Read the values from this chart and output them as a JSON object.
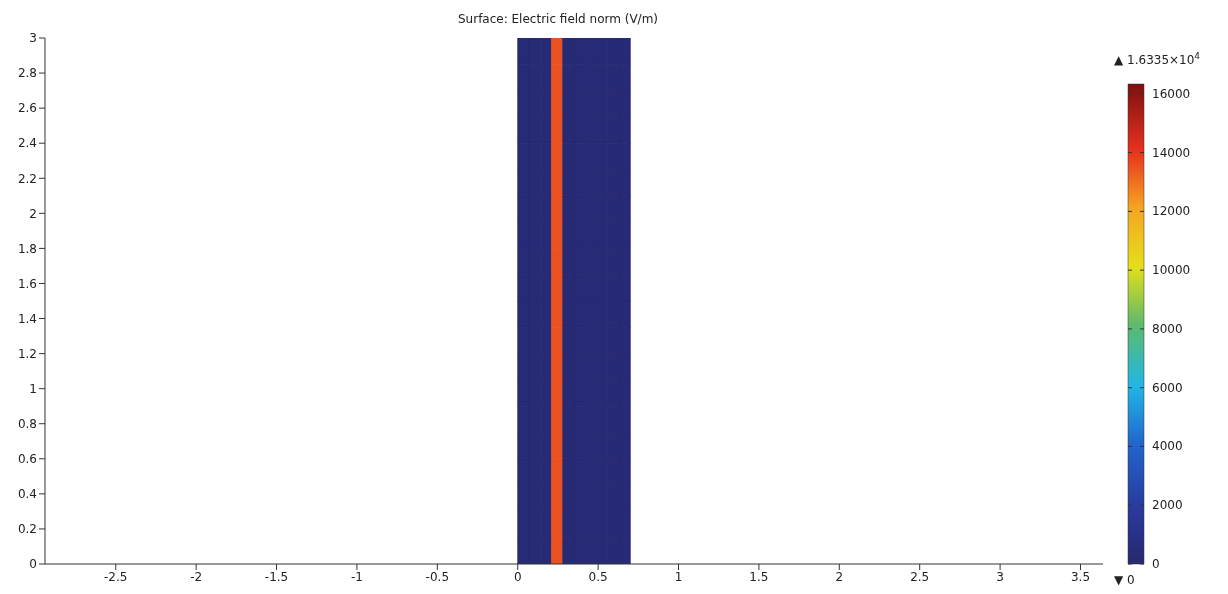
{
  "chart_data": {
    "type": "heatmap",
    "title": "Surface: Electric field norm (V/m)",
    "cells": [
      [
        null,
        null,
        null,
        null,
        null,
        null,
        null,
        null,
        null,
        null,
        null,
        null,
        null,
        null,
        null,
        null,
        null,
        null,
        null,
        null,
        null,
        null,
        null,
        null,
        null,
        null,
        null,
        null,
        null,
        null,
        null,
        null,
        null,
        null,
        null,
        null,
        null,
        null,
        null,
        null,
        null,
        null,
        200,
        200,
        200,
        13500,
        200,
        200,
        200,
        200,
        200,
        200,
        null,
        null,
        null,
        null,
        null,
        null,
        null,
        null,
        null,
        null,
        null,
        null,
        null,
        null,
        null,
        null,
        null,
        null,
        null,
        null,
        null,
        null,
        null,
        null,
        null,
        null,
        null,
        null,
        null,
        null,
        null,
        null,
        null,
        null,
        null,
        null,
        null,
        null,
        null,
        null,
        null,
        null
      ],
      [
        null,
        null,
        null,
        null,
        null,
        null,
        null,
        null,
        null,
        null,
        null,
        null,
        null,
        null,
        null,
        null,
        null,
        null,
        null,
        null,
        null,
        null,
        null,
        null,
        null,
        null,
        null,
        null,
        null,
        null,
        null,
        null,
        null,
        null,
        null,
        null,
        null,
        null,
        null,
        null,
        null,
        null,
        200,
        200,
        200,
        13500,
        200,
        200,
        200,
        200,
        200,
        200,
        null,
        null,
        null,
        null,
        null,
        null,
        null,
        null,
        null,
        null,
        null,
        null,
        null,
        null,
        null,
        null,
        null,
        null,
        null,
        null,
        null,
        null,
        null,
        null,
        null,
        null,
        null,
        null,
        null,
        null,
        null,
        null,
        null,
        null,
        null,
        null,
        null,
        null,
        null,
        null,
        null,
        null
      ],
      [
        null,
        null,
        null,
        null,
        null,
        null,
        null,
        null,
        null,
        null,
        null,
        null,
        null,
        null,
        null,
        null,
        null,
        null,
        null,
        null,
        null,
        null,
        null,
        null,
        null,
        null,
        null,
        null,
        null,
        null,
        null,
        null,
        null,
        null,
        null,
        null,
        null,
        null,
        null,
        null,
        null,
        null,
        200,
        200,
        200,
        13500,
        200,
        200,
        200,
        200,
        200,
        200,
        null,
        null,
        null,
        null,
        null,
        null,
        null,
        null,
        null,
        null,
        null,
        null,
        null,
        null,
        null,
        null,
        null,
        null,
        null,
        null,
        null,
        null,
        null,
        null,
        null,
        null,
        null,
        null,
        null,
        null,
        null,
        null,
        null,
        null,
        null,
        null,
        null,
        null,
        null,
        null,
        null,
        null
      ],
      [
        null,
        null,
        null,
        null,
        null,
        null,
        null,
        null,
        null,
        null,
        null,
        null,
        null,
        null,
        null,
        null,
        null,
        null,
        null,
        null,
        null,
        null,
        null,
        null,
        null,
        null,
        null,
        null,
        null,
        null,
        null,
        null,
        null,
        null,
        null,
        null,
        null,
        null,
        null,
        null,
        null,
        null,
        200,
        200,
        200,
        13500,
        200,
        200,
        200,
        200,
        200,
        200,
        null,
        null,
        null,
        null,
        null,
        null,
        null,
        null,
        null,
        null,
        null,
        null,
        null,
        null,
        null,
        null,
        null,
        null,
        null,
        null,
        null,
        null,
        null,
        null,
        null,
        null,
        null,
        null,
        null,
        null,
        null,
        null,
        null,
        null,
        null,
        null,
        null,
        null,
        null,
        null,
        null,
        null
      ],
      [
        null,
        null,
        null,
        null,
        null,
        null,
        null,
        null,
        null,
        null,
        null,
        null,
        null,
        null,
        null,
        null,
        null,
        null,
        null,
        null,
        null,
        null,
        null,
        null,
        null,
        null,
        null,
        null,
        null,
        null,
        null,
        null,
        null,
        null,
        null,
        null,
        null,
        null,
        null,
        null,
        null,
        null,
        200,
        200,
        200,
        13500,
        200,
        200,
        200,
        200,
        200,
        200,
        null,
        null,
        null,
        null,
        null,
        null,
        null,
        null,
        null,
        null,
        null,
        null,
        null,
        null,
        null,
        null,
        null,
        null,
        null,
        null,
        null,
        null,
        null,
        null,
        null,
        null,
        null,
        null,
        null,
        null,
        null,
        null,
        null,
        null,
        null,
        null,
        null,
        null,
        null,
        null,
        null,
        null
      ],
      [
        null,
        null,
        null,
        null,
        null,
        null,
        null,
        null,
        null,
        null,
        null,
        null,
        null,
        null,
        null,
        null,
        null,
        null,
        null,
        null,
        null,
        null,
        null,
        null,
        null,
        null,
        null,
        null,
        null,
        null,
        null,
        null,
        null,
        null,
        null,
        null,
        null,
        null,
        null,
        null,
        null,
        null,
        200,
        200,
        200,
        13500,
        200,
        200,
        200,
        200,
        200,
        200,
        null,
        null,
        null,
        null,
        null,
        null,
        null,
        null,
        null,
        null,
        null,
        null,
        null,
        null,
        null,
        null,
        null,
        null,
        null,
        null,
        null,
        null,
        null,
        null,
        null,
        null,
        null,
        null,
        null,
        null,
        null,
        null,
        null,
        null,
        null,
        null,
        null,
        null,
        null,
        null,
        null,
        null
      ],
      [
        null,
        null,
        null,
        null,
        null,
        null,
        null,
        null,
        null,
        null,
        null,
        null,
        null,
        null,
        null,
        null,
        null,
        null,
        null,
        null,
        null,
        null,
        null,
        null,
        null,
        null,
        null,
        null,
        null,
        null,
        null,
        null,
        null,
        null,
        null,
        null,
        null,
        null,
        null,
        null,
        null,
        null,
        200,
        200,
        200,
        13500,
        200,
        200,
        200,
        200,
        200,
        200,
        null,
        null,
        null,
        null,
        null,
        null,
        null,
        null,
        null,
        null,
        null,
        null,
        null,
        null,
        null,
        null,
        null,
        null,
        null,
        null,
        null,
        null,
        null,
        null,
        null,
        null,
        null,
        null,
        null,
        null,
        null,
        null,
        null,
        null,
        null,
        null,
        null,
        null,
        null,
        null,
        null,
        null
      ],
      [
        null,
        null,
        null,
        null,
        null,
        null,
        null,
        null,
        null,
        null,
        null,
        null,
        null,
        null,
        null,
        null,
        null,
        null,
        null,
        null,
        null,
        null,
        null,
        null,
        null,
        null,
        null,
        null,
        null,
        null,
        null,
        null,
        null,
        null,
        null,
        null,
        null,
        null,
        null,
        null,
        null,
        null,
        200,
        200,
        200,
        13500,
        200,
        200,
        200,
        200,
        200,
        200,
        null,
        null,
        null,
        null,
        null,
        null,
        null,
        null,
        null,
        null,
        null,
        null,
        null,
        null,
        null,
        null,
        null,
        null,
        null,
        null,
        null,
        null,
        null,
        null,
        null,
        null,
        null,
        null,
        null,
        null,
        null,
        null,
        null,
        null,
        null,
        null,
        null,
        null,
        null,
        null,
        null,
        null
      ],
      [
        null,
        null,
        null,
        null,
        null,
        null,
        null,
        null,
        null,
        null,
        null,
        null,
        null,
        null,
        null,
        null,
        null,
        null,
        null,
        null,
        null,
        null,
        null,
        null,
        null,
        null,
        null,
        null,
        null,
        null,
        null,
        null,
        null,
        null,
        null,
        null,
        null,
        null,
        null,
        null,
        null,
        null,
        200,
        200,
        200,
        13500,
        200,
        200,
        200,
        200,
        200,
        200,
        null,
        null,
        null,
        null,
        null,
        null,
        null,
        null,
        null,
        null,
        null,
        null,
        null,
        null,
        null,
        null,
        null,
        null,
        null,
        null,
        null,
        null,
        null,
        null,
        null,
        null,
        null,
        null,
        null,
        null,
        null,
        null,
        null,
        null,
        null,
        null,
        null,
        null,
        null,
        null,
        null,
        null
      ],
      [
        null,
        null,
        null,
        null,
        null,
        null,
        null,
        null,
        null,
        null,
        null,
        null,
        null,
        null,
        null,
        null,
        null,
        null,
        null,
        null,
        null,
        null,
        null,
        null,
        null,
        null,
        null,
        null,
        null,
        null,
        null,
        null,
        null,
        null,
        null,
        null,
        null,
        null,
        null,
        null,
        null,
        null,
        200,
        200,
        200,
        13500,
        200,
        200,
        200,
        200,
        200,
        200,
        null,
        null,
        null,
        null,
        null,
        null,
        null,
        null,
        null,
        null,
        null,
        null,
        null,
        null,
        null,
        null,
        null,
        null,
        null,
        null,
        null,
        null,
        null,
        null,
        null,
        null,
        null,
        null,
        null,
        null,
        null,
        null,
        null,
        null,
        null,
        null,
        null,
        null,
        null,
        null,
        null,
        null
      ],
      [
        null,
        null,
        null,
        null,
        null,
        null,
        null,
        null,
        null,
        null,
        null,
        null,
        null,
        null,
        null,
        null,
        null,
        null,
        null,
        null,
        null,
        null,
        null,
        null,
        null,
        null,
        null,
        null,
        null,
        null,
        null,
        null,
        null,
        null,
        null,
        null,
        null,
        null,
        null,
        null,
        null,
        null,
        200,
        200,
        200,
        13500,
        200,
        200,
        200,
        200,
        200,
        200,
        null,
        null,
        null,
        null,
        null,
        null,
        null,
        null,
        null,
        null,
        null,
        null,
        null,
        null,
        null,
        null,
        null,
        null,
        null,
        null,
        null,
        null,
        null,
        null,
        null,
        null,
        null,
        null,
        null,
        null,
        null,
        null,
        null,
        null,
        null,
        null,
        null,
        null,
        null,
        null,
        null,
        null
      ],
      [
        null,
        null,
        null,
        null,
        null,
        null,
        null,
        null,
        null,
        null,
        null,
        null,
        null,
        null,
        null,
        null,
        null,
        null,
        null,
        null,
        null,
        null,
        null,
        null,
        null,
        null,
        null,
        null,
        null,
        null,
        null,
        null,
        null,
        null,
        null,
        null,
        null,
        null,
        null,
        null,
        null,
        null,
        200,
        200,
        200,
        13500,
        200,
        200,
        200,
        200,
        200,
        200,
        null,
        null,
        null,
        null,
        null,
        null,
        null,
        null,
        null,
        null,
        null,
        null,
        null,
        null,
        null,
        null,
        null,
        null,
        null,
        null,
        null,
        null,
        null,
        null,
        null,
        null,
        null,
        null,
        null,
        null,
        null,
        null,
        null,
        null,
        null,
        null,
        null,
        null,
        null,
        null,
        null,
        null
      ],
      [
        null,
        null,
        null,
        null,
        null,
        null,
        null,
        null,
        null,
        null,
        null,
        null,
        null,
        null,
        null,
        null,
        null,
        null,
        null,
        null,
        null,
        null,
        null,
        null,
        null,
        null,
        null,
        null,
        null,
        null,
        null,
        null,
        null,
        null,
        null,
        null,
        null,
        null,
        null,
        null,
        null,
        null,
        200,
        200,
        200,
        13500,
        200,
        200,
        200,
        200,
        200,
        200,
        null,
        null,
        null,
        null,
        null,
        null,
        null,
        null,
        null,
        null,
        null,
        null,
        null,
        null,
        null,
        null,
        null,
        null,
        null,
        null,
        null,
        null,
        null,
        null,
        null,
        null,
        null,
        null,
        null,
        null,
        null,
        null,
        null,
        null,
        null,
        null,
        null,
        null,
        null,
        null,
        null,
        null
      ],
      [
        null,
        null,
        null,
        null,
        null,
        null,
        null,
        null,
        null,
        null,
        null,
        null,
        null,
        null,
        null,
        null,
        null,
        null,
        null,
        null,
        null,
        null,
        null,
        null,
        null,
        null,
        null,
        null,
        null,
        null,
        null,
        null,
        null,
        null,
        null,
        null,
        null,
        null,
        null,
        null,
        null,
        null,
        200,
        200,
        200,
        13500,
        200,
        200,
        200,
        200,
        200,
        200,
        null,
        null,
        null,
        null,
        null,
        null,
        null,
        null,
        null,
        null,
        null,
        null,
        null,
        null,
        null,
        null,
        null,
        null,
        null,
        null,
        null,
        null,
        null,
        null,
        null,
        null,
        null,
        null,
        null,
        null,
        null,
        null,
        null,
        null,
        null,
        null,
        null,
        null,
        null,
        null,
        null,
        null
      ],
      [
        null,
        null,
        null,
        null,
        null,
        null,
        null,
        null,
        null,
        null,
        null,
        null,
        null,
        null,
        null,
        null,
        null,
        null,
        null,
        null,
        null,
        null,
        null,
        null,
        null,
        null,
        null,
        null,
        null,
        null,
        null,
        null,
        null,
        null,
        null,
        null,
        null,
        null,
        null,
        null,
        null,
        null,
        200,
        200,
        200,
        13500,
        200,
        200,
        200,
        200,
        200,
        200,
        null,
        null,
        null,
        null,
        null,
        null,
        null,
        null,
        null,
        null,
        null,
        null,
        null,
        null,
        null,
        null,
        null,
        null,
        null,
        null,
        null,
        null,
        null,
        null,
        null,
        null,
        null,
        null,
        null,
        null,
        null,
        null,
        null,
        null,
        null,
        null,
        null,
        null,
        null,
        null,
        null,
        null
      ],
      [
        null,
        null,
        null,
        null,
        null,
        null,
        null,
        null,
        null,
        null,
        null,
        null,
        null,
        null,
        null,
        null,
        null,
        null,
        null,
        null,
        null,
        null,
        null,
        null,
        null,
        null,
        null,
        null,
        null,
        null,
        null,
        null,
        null,
        null,
        null,
        null,
        null,
        null,
        null,
        null,
        null,
        null,
        200,
        200,
        200,
        13500,
        200,
        200,
        200,
        200,
        200,
        200,
        null,
        null,
        null,
        null,
        null,
        null,
        null,
        null,
        null,
        null,
        null,
        null,
        null,
        null,
        null,
        null,
        null,
        null,
        null,
        null,
        null,
        null,
        null,
        null,
        null,
        null,
        null,
        null,
        null,
        null,
        null,
        null,
        null,
        null,
        null,
        null,
        null,
        null,
        null,
        null,
        null,
        null
      ],
      [
        null,
        null,
        null,
        null,
        null,
        null,
        null,
        null,
        null,
        null,
        null,
        null,
        null,
        null,
        null,
        null,
        null,
        null,
        null,
        null,
        null,
        null,
        null,
        null,
        null,
        null,
        null,
        null,
        null,
        null,
        null,
        null,
        null,
        null,
        null,
        null,
        null,
        null,
        null,
        null,
        null,
        null,
        200,
        200,
        200,
        13500,
        200,
        200,
        200,
        200,
        200,
        200,
        null,
        null,
        null,
        null,
        null,
        null,
        null,
        null,
        null,
        null,
        null,
        null,
        null,
        null,
        null,
        null,
        null,
        null,
        null,
        null,
        null,
        null,
        null,
        null,
        null,
        null,
        null,
        null,
        null,
        null,
        null,
        null,
        null,
        null,
        null,
        null,
        null,
        null,
        null,
        null,
        null,
        null
      ],
      [
        null,
        null,
        null,
        null,
        null,
        null,
        null,
        null,
        null,
        null,
        null,
        null,
        null,
        null,
        null,
        null,
        null,
        null,
        null,
        null,
        null,
        null,
        null,
        null,
        null,
        null,
        null,
        null,
        null,
        null,
        null,
        null,
        null,
        null,
        null,
        null,
        null,
        null,
        null,
        null,
        null,
        null,
        200,
        200,
        200,
        13500,
        200,
        200,
        200,
        200,
        200,
        200,
        null,
        null,
        null,
        null,
        null,
        null,
        null,
        null,
        null,
        null,
        null,
        null,
        null,
        null,
        null,
        null,
        null,
        null,
        null,
        null,
        null,
        null,
        null,
        null,
        null,
        null,
        null,
        null,
        null,
        null,
        null,
        null,
        null,
        null,
        null,
        null,
        null,
        null,
        null,
        null,
        null,
        null
      ],
      [
        null,
        null,
        null,
        null,
        null,
        null,
        null,
        null,
        null,
        null,
        null,
        null,
        null,
        null,
        null,
        null,
        null,
        null,
        null,
        null,
        null,
        null,
        null,
        null,
        null,
        null,
        null,
        null,
        null,
        null,
        null,
        null,
        null,
        null,
        null,
        null,
        null,
        null,
        null,
        null,
        null,
        null,
        200,
        200,
        200,
        13500,
        200,
        200,
        200,
        200,
        200,
        200,
        null,
        null,
        null,
        null,
        null,
        null,
        null,
        null,
        null,
        null,
        null,
        null,
        null,
        null,
        null,
        null,
        null,
        null,
        null,
        null,
        null,
        null,
        null,
        null,
        null,
        null,
        null,
        null,
        null,
        null,
        null,
        null,
        null,
        null,
        null,
        null,
        null,
        null,
        null,
        null,
        null,
        null
      ],
      [
        null,
        null,
        null,
        null,
        null,
        null,
        null,
        null,
        null,
        null,
        null,
        null,
        null,
        null,
        null,
        null,
        null,
        null,
        null,
        null,
        null,
        null,
        null,
        null,
        null,
        null,
        null,
        null,
        null,
        null,
        null,
        null,
        null,
        null,
        null,
        null,
        null,
        null,
        null,
        null,
        null,
        null,
        200,
        200,
        200,
        13500,
        200,
        200,
        200,
        200,
        200,
        200,
        null,
        null,
        null,
        null,
        null,
        null,
        null,
        null,
        null,
        null,
        null,
        null,
        null,
        null,
        null,
        null,
        null,
        null,
        null,
        null,
        null,
        null,
        null,
        null,
        null,
        null,
        null,
        null,
        null,
        null,
        null,
        null,
        null,
        null,
        null,
        null,
        null,
        null,
        null,
        null,
        null,
        null
      ]
    ],
    "xlim": [
      -2.94,
      3.64
    ],
    "xticks": [
      -2.5,
      -2,
      -1.5,
      -1,
      -0.5,
      0,
      0.5,
      1,
      1.5,
      2,
      2.5,
      3,
      3.5
    ],
    "ylim": [
      0,
      3
    ],
    "yticks": [
      0,
      0.2,
      0.4,
      0.6,
      0.8,
      1,
      1.2,
      1.4,
      1.6,
      1.8,
      2,
      2.2,
      2.4,
      2.6,
      2.8,
      3
    ],
    "clim": [
      0,
      16335
    ],
    "cticks": [
      0,
      2000,
      4000,
      6000,
      8000,
      10000,
      12000,
      14000,
      16000
    ],
    "annotations": [
      "▲ 1.6335×10$^{4}$",
      "▼ 0"
    ]
  }
}
